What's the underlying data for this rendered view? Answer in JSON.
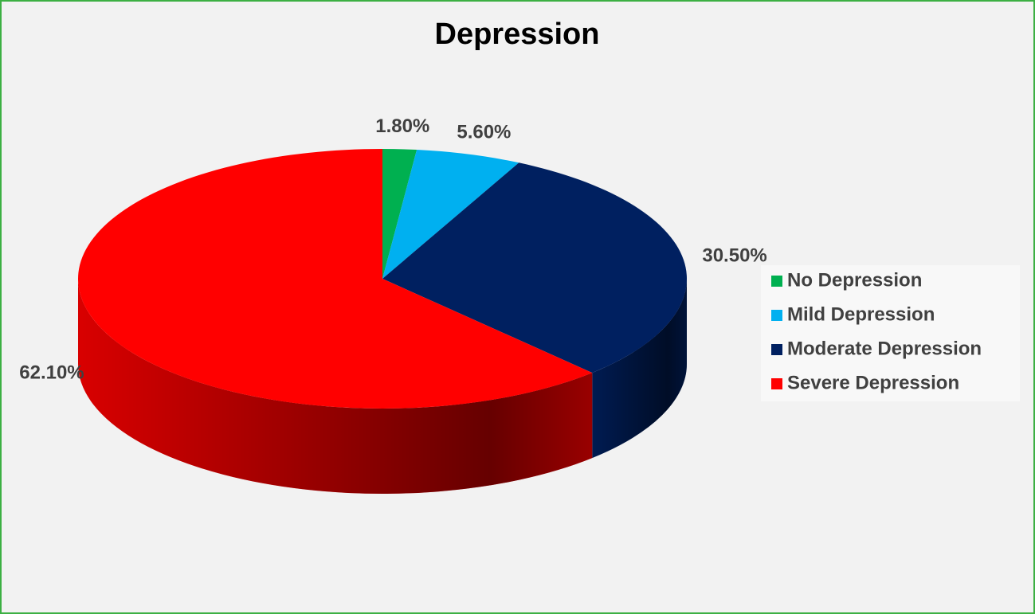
{
  "chart_data": {
    "type": "pie",
    "title": "Depression",
    "categories": [
      "No Depression",
      "Mild Depression",
      "Moderate Depression",
      "Severe Depression"
    ],
    "values": [
      1.8,
      5.6,
      30.5,
      62.1
    ],
    "value_labels": [
      "1.80%",
      "5.60%",
      "30.50%",
      "62.10%"
    ],
    "colors": [
      "#00b050",
      "#00b0f0",
      "#002060",
      "#ff0000"
    ],
    "legend": "right"
  }
}
